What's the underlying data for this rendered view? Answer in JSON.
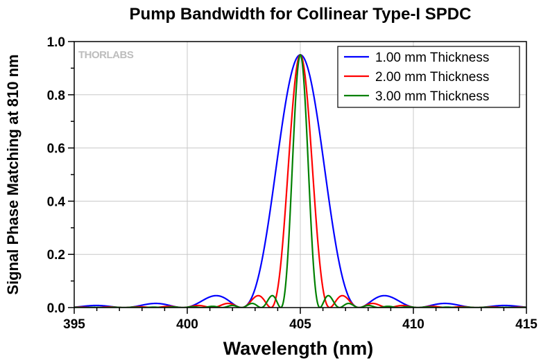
{
  "chart_data": {
    "type": "line",
    "title": "Pump Bandwidth for Collinear Type-I SPDC",
    "xlabel": "Wavelength (nm)",
    "ylabel": "Signal Phase Matching at 810 nm",
    "xlim": [
      395,
      415
    ],
    "ylim": [
      0,
      1.0
    ],
    "xticks": [
      "395",
      "400",
      "405",
      "410",
      "415"
    ],
    "yticks": [
      "0.0",
      "0.2",
      "0.4",
      "0.6",
      "0.8",
      "1.0"
    ],
    "grid": true,
    "legend_position": "top-right",
    "watermark": "THORLABS",
    "center_wavelength_nm": 405,
    "peak": 0.95,
    "series": [
      {
        "name": "1.00 mm Thickness",
        "color": "#0000ff",
        "thickness_mm": 1.0,
        "first_zero_offset_nm": 2.6
      },
      {
        "name": "2.00 mm Thickness",
        "color": "#ff0000",
        "thickness_mm": 2.0,
        "first_zero_offset_nm": 1.3
      },
      {
        "name": "3.00 mm Thickness",
        "color": "#008000",
        "thickness_mm": 3.0,
        "first_zero_offset_nm": 0.8667
      }
    ]
  }
}
